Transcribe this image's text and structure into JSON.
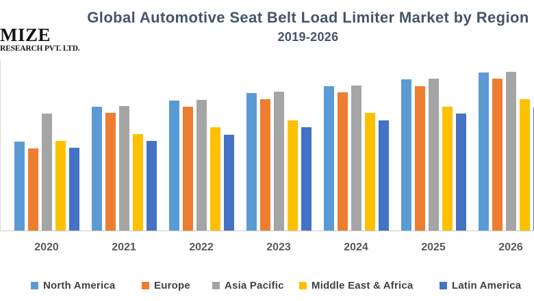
{
  "logo": {
    "line1": "MIZE",
    "line2": "RESEARCH PVT. LTD."
  },
  "title": {
    "line1": "Global Automotive Seat Belt Load Limiter Market by Region",
    "line2": "2019-2026"
  },
  "colors": {
    "title_text": "#44546A",
    "axis_line": "#C9C9C9",
    "x_label_text": "#595959",
    "legend_text": "#404040",
    "background": "#FFFFFF"
  },
  "chart_data": {
    "type": "bar",
    "title": "Global Automotive Seat Belt Load Limiter Market by Region",
    "subtitle": "2019-2026",
    "categories": [
      "2020",
      "2021",
      "2022",
      "2023",
      "2024",
      "2025",
      "2026"
    ],
    "series": [
      {
        "name": "North America",
        "color": "#5B9BD5",
        "values": [
          130,
          181,
          190,
          201,
          211,
          221,
          231
        ]
      },
      {
        "name": "Europe",
        "color": "#ED7D31",
        "values": [
          120,
          172,
          181,
          192,
          202,
          211,
          222
        ]
      },
      {
        "name": "Asia Pacific",
        "color": "#A5A5A5",
        "values": [
          171,
          182,
          191,
          203,
          212,
          222,
          232
        ]
      },
      {
        "name": "Middle East & Africa",
        "color": "#FFC000",
        "values": [
          131,
          141,
          151,
          161,
          172,
          181,
          192
        ]
      },
      {
        "name": "Latin America",
        "color": "#4472C4",
        "values": [
          121,
          131,
          140,
          151,
          161,
          171,
          180
        ]
      }
    ],
    "value_unit": "relative height (no y-axis tick labels visible in chart)",
    "ylim": [
      0,
      250
    ],
    "xlabel": "",
    "ylabel": "",
    "gridlines": false,
    "legend_position": "bottom"
  }
}
